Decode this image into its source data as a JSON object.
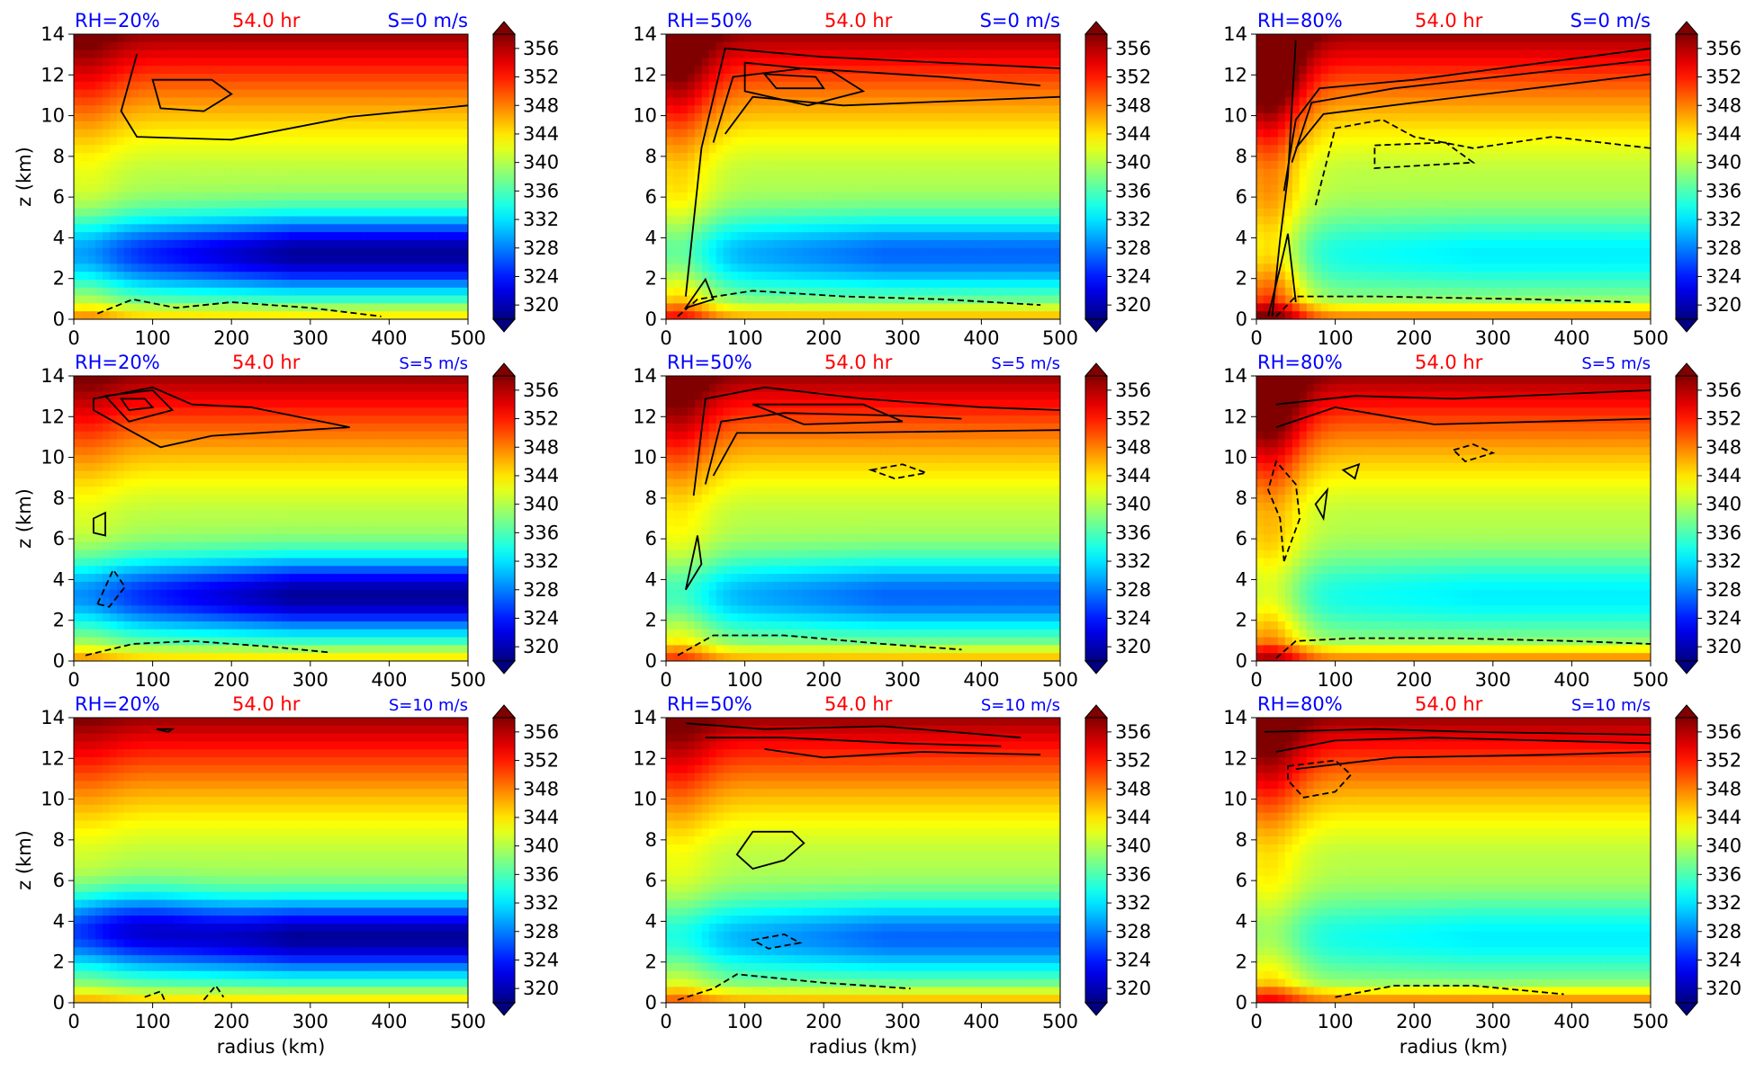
{
  "figure": {
    "xlabel": "radius (km)",
    "ylabel": "z (km)",
    "colorbar_ticks": [
      320,
      324,
      328,
      332,
      336,
      340,
      344,
      348,
      352,
      356
    ],
    "colorbar_range": [
      318,
      358
    ],
    "x_ticks": [
      0,
      100,
      200,
      300,
      400,
      500
    ],
    "y_ticks": [
      0,
      2,
      4,
      6,
      8,
      10,
      12,
      14
    ],
    "colors": {
      "rh_label": "#0000ff",
      "time_label": "#ff0000",
      "shear_label": "#0000ff",
      "contour": "#000000"
    }
  },
  "chart_data": [
    {
      "type": "heatmap",
      "rh": "RH=20%",
      "time": "54.0 hr",
      "shear": "S=0 m/s",
      "xlim": [
        0,
        500
      ],
      "ylim": [
        0,
        14
      ]
    },
    {
      "type": "heatmap",
      "rh": "RH=50%",
      "time": "54.0 hr",
      "shear": "S=0 m/s",
      "xlim": [
        0,
        500
      ],
      "ylim": [
        0,
        14
      ]
    },
    {
      "type": "heatmap",
      "rh": "RH=80%",
      "time": "54.0 hr",
      "shear": "S=0 m/s",
      "xlim": [
        0,
        500
      ],
      "ylim": [
        0,
        14
      ]
    },
    {
      "type": "heatmap",
      "rh": "RH=20%",
      "time": "54.0 hr",
      "shear": "S=5 m/s",
      "xlim": [
        0,
        500
      ],
      "ylim": [
        0,
        14
      ]
    },
    {
      "type": "heatmap",
      "rh": "RH=50%",
      "time": "54.0 hr",
      "shear": "S=5 m/s",
      "xlim": [
        0,
        500
      ],
      "ylim": [
        0,
        14
      ]
    },
    {
      "type": "heatmap",
      "rh": "RH=80%",
      "time": "54.0 hr",
      "shear": "S=5 m/s",
      "xlim": [
        0,
        500
      ],
      "ylim": [
        0,
        14
      ]
    },
    {
      "type": "heatmap",
      "rh": "RH=20%",
      "time": "54.0 hr",
      "shear": "S=10 m/s",
      "xlim": [
        0,
        500
      ],
      "ylim": [
        0,
        14
      ]
    },
    {
      "type": "heatmap",
      "rh": "RH=50%",
      "time": "54.0 hr",
      "shear": "S=10 m/s",
      "xlim": [
        0,
        500
      ],
      "ylim": [
        0,
        14
      ]
    },
    {
      "type": "heatmap",
      "rh": "RH=80%",
      "time": "54.0 hr",
      "shear": "S=10 m/s",
      "xlim": [
        0,
        500
      ],
      "ylim": [
        0,
        14
      ]
    }
  ]
}
